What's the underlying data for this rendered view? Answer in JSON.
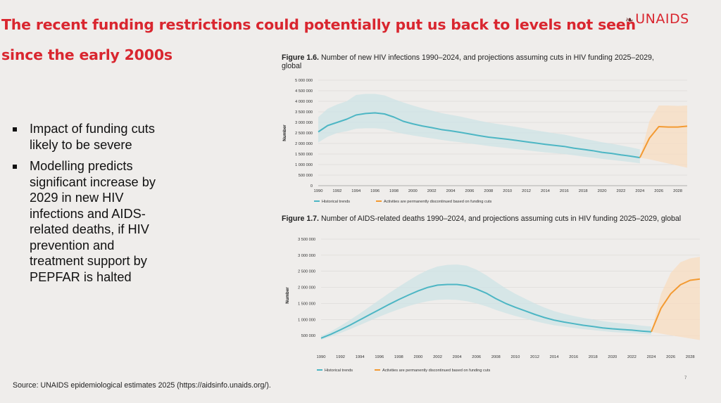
{
  "headline": {
    "line1": "The recent funding restrictions could potentially put us back to levels not seen",
    "line2": "since the early 2000s"
  },
  "logo": {
    "text": "UNAIDS",
    "icon": "unaids-ribbon-icon"
  },
  "bullets": [
    "Impact of funding cuts likely to be severe",
    "Modelling predicts significant increase by 2029 in new HIV infections and AIDS-related deaths, if HIV prevention and treatment support by PEPFAR is halted"
  ],
  "figure1": {
    "label": "Figure 1.6.",
    "caption": "Number of new HIV infections 1990–2024, and projections assuming cuts in HIV funding 2025–2029, global"
  },
  "figure2": {
    "label": "Figure 1.7.",
    "caption": "Number of AIDS-related deaths 1990–2024, and projections assuming cuts in HIV funding 2025–2029, global"
  },
  "source": "Source: UNAIDS epidemiological estimates 2025 (https://aidsinfo.unaids.org/).",
  "page_number": "7",
  "colors": {
    "headline": "#d9262f",
    "historical": "#4db6c4",
    "historical_band": "#cde3e5",
    "projection": "#f39a32",
    "projection_band": "#f8dcc0"
  },
  "chart_data": [
    {
      "type": "line",
      "ylabel": "Number",
      "ylim": [
        0,
        5000000
      ],
      "yticks": [
        0,
        500000,
        1000000,
        1500000,
        2000000,
        2500000,
        3000000,
        3500000,
        4000000,
        4500000,
        5000000
      ],
      "ytick_labels": [
        "0",
        "500 000",
        "1 000 000",
        "1 500 000",
        "2 000 000",
        "2 500 000",
        "3 000 000",
        "3 500 000",
        "4 000 000",
        "4 500 000",
        "5 000 000"
      ],
      "xlim": [
        1990,
        2029
      ],
      "xticks": [
        1990,
        1992,
        1994,
        1996,
        1998,
        2000,
        2002,
        2004,
        2006,
        2008,
        2010,
        2012,
        2014,
        2016,
        2018,
        2020,
        2022,
        2024,
        2026,
        2028
      ],
      "legend": [
        "Historical trends",
        "Activities are permanently discontinued based on funding cuts"
      ],
      "legend_position": "bottom",
      "series": [
        {
          "name": "Historical trends",
          "x": [
            1990,
            1991,
            1992,
            1993,
            1994,
            1995,
            1996,
            1997,
            1998,
            1999,
            2000,
            2001,
            2002,
            2003,
            2004,
            2005,
            2006,
            2007,
            2008,
            2009,
            2010,
            2011,
            2012,
            2013,
            2014,
            2015,
            2016,
            2017,
            2018,
            2019,
            2020,
            2021,
            2022,
            2023,
            2024
          ],
          "values": [
            2550000,
            2850000,
            3000000,
            3150000,
            3350000,
            3420000,
            3450000,
            3400000,
            3250000,
            3050000,
            2930000,
            2830000,
            2750000,
            2660000,
            2600000,
            2530000,
            2450000,
            2370000,
            2300000,
            2250000,
            2200000,
            2140000,
            2080000,
            2020000,
            1960000,
            1910000,
            1860000,
            1780000,
            1720000,
            1660000,
            1580000,
            1530000,
            1460000,
            1400000,
            1330000
          ],
          "lower": [
            2050000,
            2320000,
            2500000,
            2580000,
            2700000,
            2720000,
            2720000,
            2680000,
            2560000,
            2460000,
            2380000,
            2310000,
            2240000,
            2170000,
            2110000,
            2060000,
            2000000,
            1940000,
            1880000,
            1830000,
            1780000,
            1730000,
            1680000,
            1630000,
            1580000,
            1540000,
            1500000,
            1440000,
            1380000,
            1330000,
            1270000,
            1220000,
            1170000,
            1120000,
            1060000
          ],
          "upper": [
            3250000,
            3650000,
            3850000,
            4000000,
            4300000,
            4350000,
            4350000,
            4280000,
            4100000,
            3940000,
            3800000,
            3670000,
            3560000,
            3440000,
            3360000,
            3280000,
            3180000,
            3080000,
            2990000,
            2920000,
            2850000,
            2780000,
            2700000,
            2620000,
            2550000,
            2480000,
            2420000,
            2320000,
            2230000,
            2150000,
            2060000,
            1990000,
            1910000,
            1820000,
            1720000
          ]
        },
        {
          "name": "Activities are permanently discontinued based on funding cuts",
          "x": [
            2024,
            2025,
            2026,
            2027,
            2028,
            2029
          ],
          "values": [
            1330000,
            2250000,
            2800000,
            2780000,
            2780000,
            2820000
          ],
          "lower": [
            1330000,
            1250000,
            1150000,
            1050000,
            950000,
            850000
          ],
          "upper": [
            1330000,
            3050000,
            3800000,
            3800000,
            3780000,
            3800000
          ]
        }
      ]
    },
    {
      "type": "line",
      "ylabel": "Number",
      "ylim": [
        0,
        3500000
      ],
      "yticks": [
        500000,
        1000000,
        1500000,
        2000000,
        2500000,
        3000000,
        3500000
      ],
      "ytick_labels": [
        "500 000",
        "1 000 000",
        "1 500 000",
        "2 000 000",
        "2 500 000",
        "3 000 000",
        "3 500 000"
      ],
      "xlim": [
        1990,
        2029
      ],
      "xticks": [
        1990,
        1992,
        1994,
        1996,
        1998,
        2000,
        2002,
        2004,
        2006,
        2008,
        2010,
        2012,
        2014,
        2016,
        2018,
        2020,
        2022,
        2024,
        2026,
        2028
      ],
      "legend": [
        "Historical trends",
        "Activities are permanently discontinued based on funding cuts"
      ],
      "legend_position": "bottom",
      "series": [
        {
          "name": "Historical trends",
          "x": [
            1990,
            1991,
            1992,
            1993,
            1994,
            1995,
            1996,
            1997,
            1998,
            1999,
            2000,
            2001,
            2002,
            2003,
            2004,
            2005,
            2006,
            2007,
            2008,
            2009,
            2010,
            2011,
            2012,
            2013,
            2014,
            2015,
            2016,
            2017,
            2018,
            2019,
            2020,
            2021,
            2022,
            2023,
            2024
          ],
          "values": [
            420000,
            540000,
            680000,
            830000,
            990000,
            1150000,
            1310000,
            1470000,
            1620000,
            1760000,
            1890000,
            2000000,
            2070000,
            2090000,
            2090000,
            2050000,
            1950000,
            1820000,
            1650000,
            1500000,
            1380000,
            1270000,
            1160000,
            1060000,
            980000,
            920000,
            870000,
            820000,
            780000,
            740000,
            710000,
            690000,
            670000,
            640000,
            620000
          ],
          "lower": [
            370000,
            470000,
            580000,
            700000,
            830000,
            960000,
            1090000,
            1210000,
            1320000,
            1420000,
            1500000,
            1570000,
            1610000,
            1620000,
            1610000,
            1570000,
            1500000,
            1410000,
            1300000,
            1200000,
            1110000,
            1030000,
            950000,
            880000,
            820000,
            780000,
            740000,
            700000,
            670000,
            640000,
            610000,
            590000,
            570000,
            550000,
            530000
          ],
          "upper": [
            480000,
            630000,
            800000,
            990000,
            1190000,
            1400000,
            1610000,
            1820000,
            2020000,
            2210000,
            2390000,
            2540000,
            2650000,
            2700000,
            2710000,
            2670000,
            2550000,
            2380000,
            2170000,
            1970000,
            1800000,
            1650000,
            1500000,
            1370000,
            1260000,
            1180000,
            1110000,
            1050000,
            1000000,
            950000,
            910000,
            880000,
            850000,
            810000,
            780000
          ]
        },
        {
          "name": "Activities are permanently discontinued based on funding cuts",
          "x": [
            2024,
            2025,
            2026,
            2027,
            2028,
            2029
          ],
          "values": [
            620000,
            1350000,
            1800000,
            2080000,
            2220000,
            2260000
          ],
          "lower": [
            620000,
            560000,
            510000,
            460000,
            410000,
            360000
          ],
          "upper": [
            620000,
            1800000,
            2450000,
            2780000,
            2900000,
            2950000
          ]
        }
      ]
    }
  ]
}
